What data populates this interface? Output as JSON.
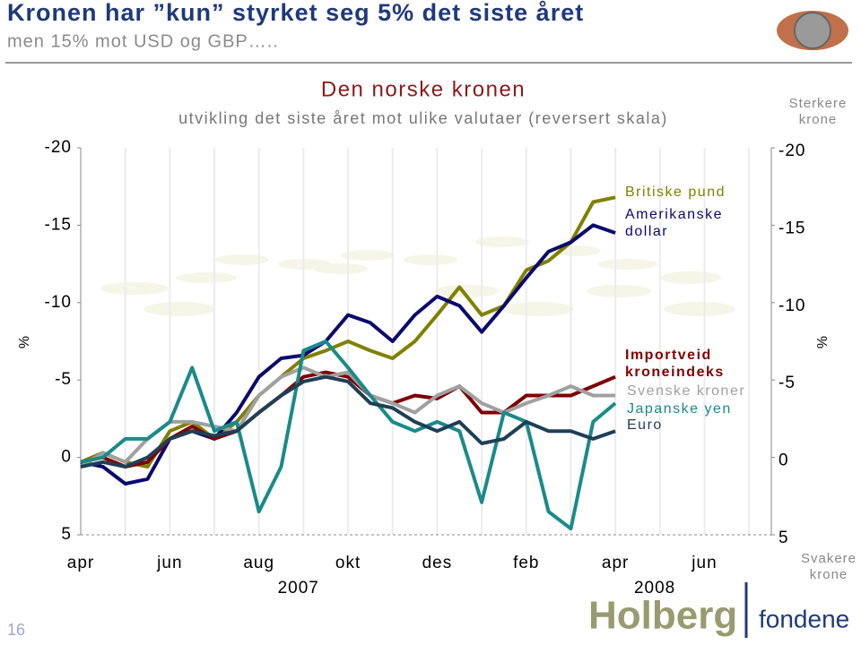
{
  "header": {
    "title": "Kronen har ”kun” styrket seg 5% det siste året",
    "subtitle": "men 15% mot USD og GBP….."
  },
  "page_number": "16",
  "logo": {
    "name": "Holberg",
    "sub": "fondene"
  },
  "chart_data": {
    "type": "line",
    "title": "Den norske kronen",
    "subtitle": "utvikling det siste året mot ulike valutaer (reversert skala)",
    "y_label": "%",
    "y2_label": "%",
    "top_note": "Sterkere krone",
    "bottom_note": "Svakere krone",
    "year_labels": [
      "2007",
      "2008"
    ],
    "categories": [
      "apr",
      null,
      null,
      null,
      "jun",
      null,
      null,
      null,
      "aug",
      null,
      null,
      null,
      "okt",
      null,
      null,
      null,
      "des",
      null,
      null,
      null,
      "feb",
      null,
      null,
      null,
      "apr",
      null,
      null,
      null,
      "jun",
      null,
      null,
      null
    ],
    "ylim": [
      -20,
      5
    ],
    "reversed": true,
    "yticks": [
      -20,
      -15,
      -10,
      -5,
      0,
      5
    ],
    "series": [
      {
        "name": "Britiske pund",
        "color": "#808000",
        "values": [
          0.3,
          -0.3,
          0.3,
          0.6,
          -1.7,
          -2.3,
          -1.2,
          -2.3,
          -4,
          -5.2,
          -6.4,
          -6.9,
          -7.5,
          -6.9,
          -6.4,
          -7.5,
          -9.2,
          -11,
          -9.2,
          -9.8,
          -12.1,
          -12.7,
          -13.9,
          -16.5,
          -16.8,
          null,
          null,
          null,
          null,
          null,
          null,
          null
        ]
      },
      {
        "name": "Amerikanske dollar",
        "color": "#0a0a6e",
        "values": [
          0.3,
          0.6,
          1.7,
          1.4,
          -1.2,
          -1.7,
          -1.2,
          -2.9,
          -5.2,
          -6.4,
          -6.6,
          -7.5,
          -9.2,
          -8.7,
          -7.5,
          -9.2,
          -10.4,
          -9.8,
          -8.1,
          -9.8,
          -11.6,
          -13.3,
          -13.9,
          -15,
          -14.5,
          null,
          null,
          null,
          null,
          null,
          null,
          null
        ]
      },
      {
        "name": "Importveid kroneindeks",
        "color": "#800000",
        "values": [
          0.3,
          0,
          0.6,
          0.3,
          -1.2,
          -2,
          -1.2,
          -1.7,
          -2.9,
          -4,
          -5.2,
          -5.5,
          -5.2,
          -4,
          -3.5,
          -4,
          -3.8,
          -4.6,
          -2.9,
          -2.9,
          -4,
          -4,
          -4,
          -4.6,
          -5.2,
          null,
          null,
          null,
          null,
          null,
          null,
          null
        ]
      },
      {
        "name": "Svenske kroner",
        "color": "#a0a0a0",
        "values": [
          0.6,
          -0.3,
          0.3,
          -1.2,
          -2.3,
          -2.3,
          -2,
          -1.7,
          -4,
          -5.2,
          -5.8,
          -5.2,
          -5.5,
          -4,
          -3.5,
          -2.9,
          -4,
          -4.6,
          -3.5,
          -2.9,
          -3.5,
          -4,
          -4.6,
          -4,
          -4,
          null,
          null,
          null,
          null,
          null,
          null,
          null
        ]
      },
      {
        "name": "Japanske yen",
        "color": "#1a8a8a",
        "values": [
          0.3,
          0,
          -1.2,
          -1.2,
          -2.3,
          -5.8,
          -1.7,
          -2.3,
          3.5,
          0.6,
          -6.9,
          -7.5,
          -5.8,
          -4,
          -2.3,
          -1.7,
          -2.3,
          -1.7,
          2.9,
          -2.9,
          -2.3,
          3.5,
          4.6,
          -2.3,
          -3.5,
          null,
          null,
          null,
          null,
          null,
          null,
          null
        ]
      },
      {
        "name": "Euro",
        "color": "#1f3f55",
        "values": [
          0.6,
          0.3,
          0.6,
          0,
          -1.2,
          -1.7,
          -1.4,
          -1.7,
          -2.9,
          -4,
          -4.9,
          -5.2,
          -4.9,
          -3.5,
          -3.2,
          -2.3,
          -1.7,
          -2.3,
          -0.9,
          -1.2,
          -2.3,
          -1.7,
          -1.7,
          -1.2,
          -1.7,
          null,
          null,
          null,
          null,
          null,
          null,
          null
        ]
      }
    ]
  }
}
